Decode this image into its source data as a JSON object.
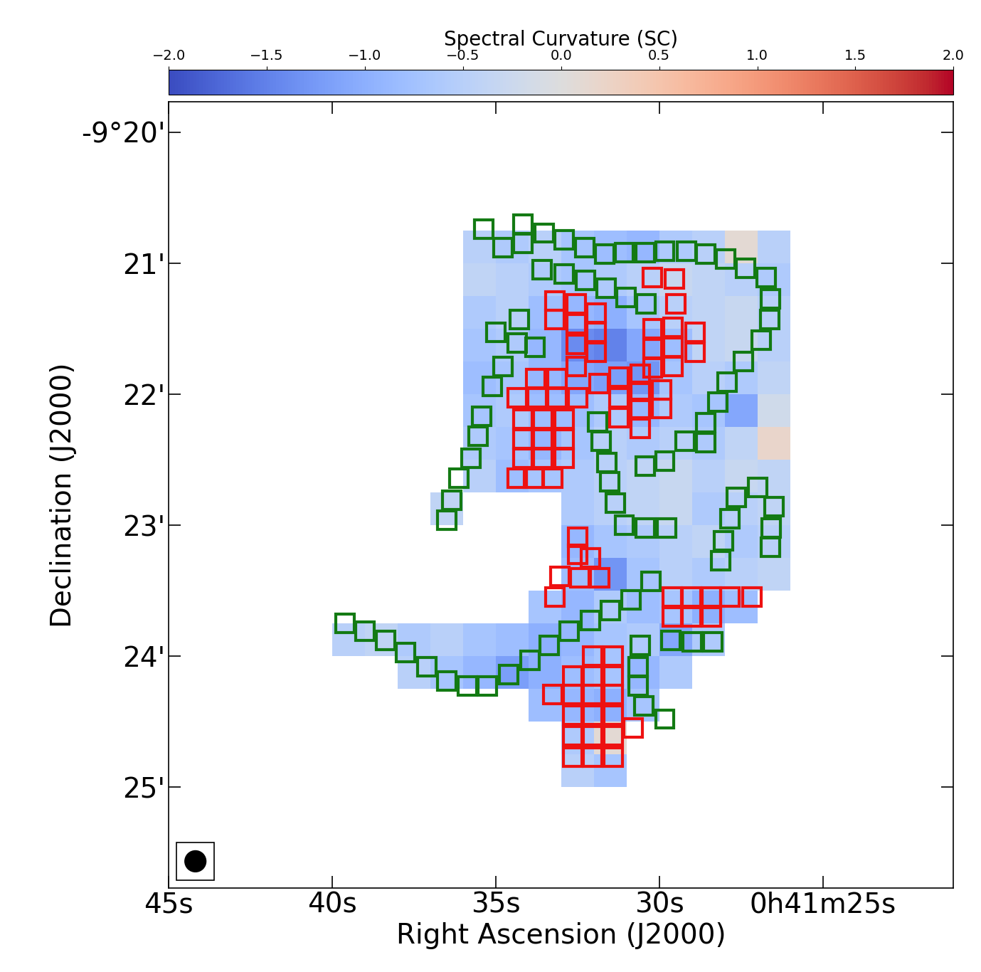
{
  "chart_data": {
    "type": "heatmap",
    "x_label": "Right Ascension (J2000)",
    "y_label": "Declination (J2000)",
    "xlim": [
      45,
      21
    ],
    "ylim": [
      25.77,
      19.77
    ],
    "xticks": [
      {
        "value": 45,
        "label": "45s"
      },
      {
        "value": 40,
        "label": "40s"
      },
      {
        "value": 35,
        "label": "35s"
      },
      {
        "value": 30,
        "label": "30s"
      },
      {
        "value": 25,
        "label": "0h41m25s"
      }
    ],
    "yticks": [
      {
        "value": 20,
        "label": "-9°20'"
      },
      {
        "value": 21,
        "label": "21'"
      },
      {
        "value": 22,
        "label": "22'"
      },
      {
        "value": 23,
        "label": "23'"
      },
      {
        "value": 24,
        "label": "24'"
      },
      {
        "value": 25,
        "label": "25'"
      }
    ],
    "colorbar": {
      "label": "Spectral Curvature (SC)",
      "range": [
        -2,
        2
      ],
      "ticks": [
        {
          "value": -2,
          "label": "−2.0"
        },
        {
          "value": -1.5,
          "label": "−1.5"
        },
        {
          "value": -1,
          "label": "−1.0"
        },
        {
          "value": -0.5,
          "label": "−0.5"
        },
        {
          "value": 0,
          "label": "0.0"
        },
        {
          "value": 0.5,
          "label": "0.5"
        },
        {
          "value": 1,
          "label": "1.0"
        },
        {
          "value": 1.5,
          "label": "1.5"
        },
        {
          "value": 2,
          "label": "2.0"
        }
      ]
    },
    "map": {
      "x_edges": [
        40,
        39,
        38,
        37,
        36,
        35,
        34,
        33,
        32,
        31,
        30,
        29,
        28,
        27,
        26
      ],
      "y_edges": [
        20.5,
        20.75,
        21.0,
        21.25,
        21.5,
        21.75,
        22.0,
        22.25,
        22.5,
        22.75,
        23.0,
        23.25,
        23.5,
        23.75,
        24.0,
        24.25,
        24.5,
        24.75,
        25.0
      ],
      "values": [
        [
          null,
          null,
          null,
          null,
          null,
          null,
          null,
          null,
          null,
          null,
          null,
          null,
          null,
          null
        ],
        [
          null,
          null,
          null,
          null,
          -0.5,
          -0.6,
          -0.5,
          -0.7,
          -0.8,
          -0.9,
          -0.6,
          -0.5,
          0.1,
          -0.5
        ],
        [
          null,
          null,
          null,
          null,
          -0.4,
          -0.5,
          -0.6,
          -0.7,
          -0.6,
          -0.5,
          -0.3,
          -0.4,
          -0.5,
          -0.6
        ],
        [
          null,
          null,
          null,
          null,
          -0.6,
          -0.5,
          -0.8,
          -0.9,
          -1.0,
          -0.7,
          -0.5,
          -0.4,
          -0.3,
          -0.5
        ],
        [
          null,
          null,
          null,
          null,
          -0.7,
          -0.6,
          -0.9,
          -1.4,
          -1.5,
          -1.1,
          -0.8,
          -0.4,
          -0.3,
          -0.5
        ],
        [
          null,
          null,
          null,
          null,
          -0.8,
          -0.7,
          -0.9,
          -1.1,
          -1.2,
          -1.3,
          -0.7,
          -0.5,
          -0.6,
          -0.4
        ],
        [
          null,
          null,
          null,
          null,
          -0.7,
          -0.6,
          -0.8,
          -0.8,
          -0.6,
          -0.9,
          -0.6,
          -0.7,
          -1.1,
          -0.2
        ],
        [
          null,
          null,
          null,
          null,
          -0.6,
          -0.7,
          -0.9,
          -0.7,
          -0.5,
          -0.6,
          -0.5,
          -0.6,
          -0.4,
          0.2
        ],
        [
          null,
          null,
          null,
          null,
          -0.5,
          -0.8,
          -0.7,
          -0.6,
          -0.5,
          -0.4,
          -0.3,
          -0.5,
          -0.3,
          -0.4
        ],
        [
          null,
          null,
          null,
          -0.4,
          null,
          null,
          null,
          -0.6,
          -0.5,
          -0.4,
          -0.3,
          -0.6,
          -0.5,
          -0.4
        ],
        [
          null,
          null,
          null,
          null,
          null,
          null,
          null,
          -0.9,
          -0.7,
          -0.6,
          -0.5,
          -0.4,
          -0.6,
          -0.5
        ],
        [
          null,
          null,
          null,
          null,
          null,
          null,
          null,
          -0.8,
          -1.3,
          -0.7,
          -0.5,
          -0.6,
          -0.5,
          -0.4
        ],
        [
          null,
          null,
          null,
          null,
          null,
          null,
          -0.7,
          -0.9,
          -0.6,
          -0.8,
          -0.7,
          -1.0,
          -0.8,
          null
        ],
        [
          -0.5,
          -0.4,
          -0.6,
          -0.5,
          -0.7,
          -0.8,
          -1.0,
          -0.9,
          -0.7,
          -0.6,
          -1.1,
          -0.6,
          null,
          null
        ],
        [
          null,
          null,
          -0.5,
          -0.7,
          -0.9,
          -1.2,
          -1.0,
          -0.8,
          -0.7,
          -0.9,
          -0.6,
          null,
          null,
          null
        ],
        [
          null,
          null,
          null,
          null,
          null,
          null,
          -0.8,
          -0.9,
          -1.0,
          -0.7,
          null,
          null,
          null,
          null
        ],
        [
          null,
          null,
          null,
          null,
          null,
          null,
          null,
          -0.6,
          0.1,
          null,
          null,
          null,
          null,
          null
        ],
        [
          null,
          null,
          null,
          null,
          null,
          null,
          null,
          -0.5,
          -0.7,
          null,
          null,
          null,
          null,
          null
        ]
      ]
    },
    "regions": [
      {
        "color": "#137a13",
        "boxes": [
          [
            35.37,
            20.74
          ],
          [
            34.78,
            20.88
          ],
          [
            34.17,
            20.7
          ],
          [
            34.17,
            20.85
          ],
          [
            33.52,
            20.77
          ],
          [
            33.59,
            21.05
          ],
          [
            32.91,
            20.82
          ],
          [
            32.91,
            21.08
          ],
          [
            32.28,
            20.88
          ],
          [
            32.26,
            21.13
          ],
          [
            31.67,
            20.93
          ],
          [
            31.63,
            21.19
          ],
          [
            31.07,
            20.92
          ],
          [
            31.02,
            21.26
          ],
          [
            30.43,
            20.92
          ],
          [
            30.41,
            21.31
          ],
          [
            29.83,
            20.91
          ],
          [
            29.17,
            20.91
          ],
          [
            28.57,
            20.93
          ],
          [
            27.98,
            20.97
          ],
          [
            27.37,
            21.04
          ],
          [
            26.74,
            21.11
          ],
          [
            26.61,
            21.27
          ],
          [
            26.63,
            21.43
          ],
          [
            26.89,
            21.59
          ],
          [
            27.43,
            21.75
          ],
          [
            27.93,
            21.91
          ],
          [
            28.2,
            22.06
          ],
          [
            28.57,
            22.22
          ],
          [
            28.57,
            22.37
          ],
          [
            29.22,
            22.36
          ],
          [
            29.83,
            22.51
          ],
          [
            30.43,
            22.55
          ],
          [
            34.28,
            21.43
          ],
          [
            35.0,
            21.53
          ],
          [
            34.35,
            21.61
          ],
          [
            33.8,
            21.64
          ],
          [
            34.78,
            21.79
          ],
          [
            35.11,
            21.94
          ],
          [
            35.44,
            22.17
          ],
          [
            35.54,
            22.32
          ],
          [
            35.76,
            22.49
          ],
          [
            36.13,
            22.64
          ],
          [
            36.35,
            22.81
          ],
          [
            36.5,
            22.96
          ],
          [
            31.89,
            22.21
          ],
          [
            31.78,
            22.36
          ],
          [
            31.61,
            22.52
          ],
          [
            31.52,
            22.67
          ],
          [
            31.35,
            22.83
          ],
          [
            31.07,
            23.0
          ],
          [
            30.43,
            23.02
          ],
          [
            29.78,
            23.02
          ],
          [
            27.0,
            22.71
          ],
          [
            27.65,
            22.79
          ],
          [
            26.5,
            22.86
          ],
          [
            27.83,
            22.95
          ],
          [
            26.57,
            23.02
          ],
          [
            28.04,
            23.12
          ],
          [
            26.61,
            23.17
          ],
          [
            28.13,
            23.27
          ],
          [
            30.26,
            23.43
          ],
          [
            30.87,
            23.57
          ],
          [
            31.5,
            23.65
          ],
          [
            32.11,
            23.73
          ],
          [
            32.76,
            23.81
          ],
          [
            33.37,
            23.92
          ],
          [
            33.96,
            24.03
          ],
          [
            34.61,
            24.14
          ],
          [
            35.26,
            24.23
          ],
          [
            35.87,
            24.23
          ],
          [
            36.5,
            24.19
          ],
          [
            37.11,
            24.08
          ],
          [
            37.76,
            23.97
          ],
          [
            38.37,
            23.88
          ],
          [
            39.0,
            23.81
          ],
          [
            39.61,
            23.75
          ],
          [
            30.59,
            23.92
          ],
          [
            30.65,
            24.08
          ],
          [
            30.65,
            24.23
          ],
          [
            30.48,
            24.38
          ],
          [
            29.83,
            24.48
          ],
          [
            29.65,
            23.88
          ],
          [
            29.0,
            23.89
          ],
          [
            28.37,
            23.89
          ]
        ]
      },
      {
        "color": "#ee1111",
        "boxes": [
          [
            30.22,
            21.11
          ],
          [
            29.54,
            21.12
          ],
          [
            29.5,
            21.31
          ],
          [
            33.2,
            21.29
          ],
          [
            32.54,
            21.31
          ],
          [
            33.2,
            21.43
          ],
          [
            32.54,
            21.46
          ],
          [
            31.93,
            21.38
          ],
          [
            31.93,
            21.53
          ],
          [
            32.54,
            21.62
          ],
          [
            31.93,
            21.68
          ],
          [
            32.54,
            21.79
          ],
          [
            30.2,
            21.5
          ],
          [
            29.57,
            21.49
          ],
          [
            28.91,
            21.53
          ],
          [
            30.2,
            21.65
          ],
          [
            29.57,
            21.64
          ],
          [
            28.91,
            21.68
          ],
          [
            30.2,
            21.8
          ],
          [
            29.57,
            21.79
          ],
          [
            33.78,
            21.88
          ],
          [
            33.13,
            21.88
          ],
          [
            31.24,
            21.87
          ],
          [
            30.59,
            21.85
          ],
          [
            31.85,
            21.92
          ],
          [
            34.35,
            22.03
          ],
          [
            33.74,
            22.03
          ],
          [
            33.13,
            22.03
          ],
          [
            32.5,
            22.03
          ],
          [
            31.24,
            22.03
          ],
          [
            30.59,
            21.98
          ],
          [
            29.93,
            21.97
          ],
          [
            31.24,
            22.18
          ],
          [
            30.59,
            22.11
          ],
          [
            29.93,
            22.11
          ],
          [
            30.59,
            22.26
          ],
          [
            34.17,
            22.19
          ],
          [
            33.57,
            22.19
          ],
          [
            32.91,
            22.19
          ],
          [
            34.17,
            22.34
          ],
          [
            33.57,
            22.34
          ],
          [
            32.91,
            22.34
          ],
          [
            34.17,
            22.49
          ],
          [
            33.57,
            22.49
          ],
          [
            32.91,
            22.49
          ],
          [
            34.35,
            22.64
          ],
          [
            33.85,
            22.64
          ],
          [
            33.26,
            22.64
          ],
          [
            32.5,
            23.09
          ],
          [
            32.5,
            23.22
          ],
          [
            32.11,
            23.25
          ],
          [
            33.04,
            23.39
          ],
          [
            32.43,
            23.4
          ],
          [
            31.83,
            23.4
          ],
          [
            33.2,
            23.55
          ],
          [
            29.61,
            23.55
          ],
          [
            29.02,
            23.55
          ],
          [
            28.41,
            23.55
          ],
          [
            27.83,
            23.55
          ],
          [
            27.17,
            23.55
          ],
          [
            29.61,
            23.7
          ],
          [
            29.02,
            23.7
          ],
          [
            28.41,
            23.7
          ],
          [
            32.65,
            24.15
          ],
          [
            32.04,
            24.0
          ],
          [
            31.41,
            24.0
          ],
          [
            32.04,
            24.15
          ],
          [
            31.41,
            24.15
          ],
          [
            33.26,
            24.29
          ],
          [
            32.65,
            24.29
          ],
          [
            32.04,
            24.29
          ],
          [
            31.41,
            24.29
          ],
          [
            32.65,
            24.45
          ],
          [
            32.04,
            24.45
          ],
          [
            31.41,
            24.45
          ],
          [
            30.8,
            24.55
          ],
          [
            32.65,
            24.61
          ],
          [
            32.04,
            24.61
          ],
          [
            31.41,
            24.61
          ],
          [
            32.65,
            24.77
          ],
          [
            32.04,
            24.77
          ],
          [
            31.41,
            24.77
          ]
        ]
      }
    ]
  }
}
